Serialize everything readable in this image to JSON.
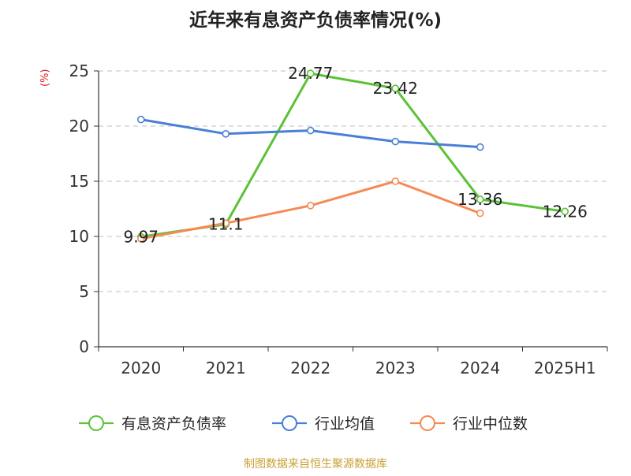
{
  "title": "近年来有息资产负债率情况(%)",
  "unit_label": "(%)",
  "source": "制图数据来自恒生聚源数据库",
  "colors": {
    "series_green": "#5bc236",
    "series_blue": "#4a7fd6",
    "series_orange": "#f58a55",
    "grid": "#cccccc",
    "axis": "#333333",
    "unit": "#e02020",
    "source": "#c8a033"
  },
  "chart_data": {
    "type": "line",
    "title": "近年来有息资产负债率情况(%)",
    "ylabel": "(%)",
    "xlabel": "",
    "categories": [
      "2020",
      "2021",
      "2022",
      "2023",
      "2024",
      "2025H1"
    ],
    "ylim": [
      0,
      25
    ],
    "yticks": [
      0,
      5,
      10,
      15,
      20,
      25
    ],
    "grid": "horizontal dashed",
    "legend_position": "bottom",
    "series": [
      {
        "name": "有息资产负债率",
        "color": "#5bc236",
        "values": [
          9.97,
          11.1,
          24.77,
          23.42,
          13.36,
          12.26
        ],
        "labels": [
          "9.97",
          "11.1",
          "24.77",
          "23.42",
          "13.36",
          "12.26"
        ]
      },
      {
        "name": "行业均值",
        "color": "#4a7fd6",
        "values": [
          20.6,
          19.3,
          19.6,
          18.6,
          18.1,
          null
        ]
      },
      {
        "name": "行业中位数",
        "color": "#f58a55",
        "values": [
          9.8,
          11.2,
          12.8,
          15.0,
          12.1,
          null
        ]
      }
    ]
  }
}
